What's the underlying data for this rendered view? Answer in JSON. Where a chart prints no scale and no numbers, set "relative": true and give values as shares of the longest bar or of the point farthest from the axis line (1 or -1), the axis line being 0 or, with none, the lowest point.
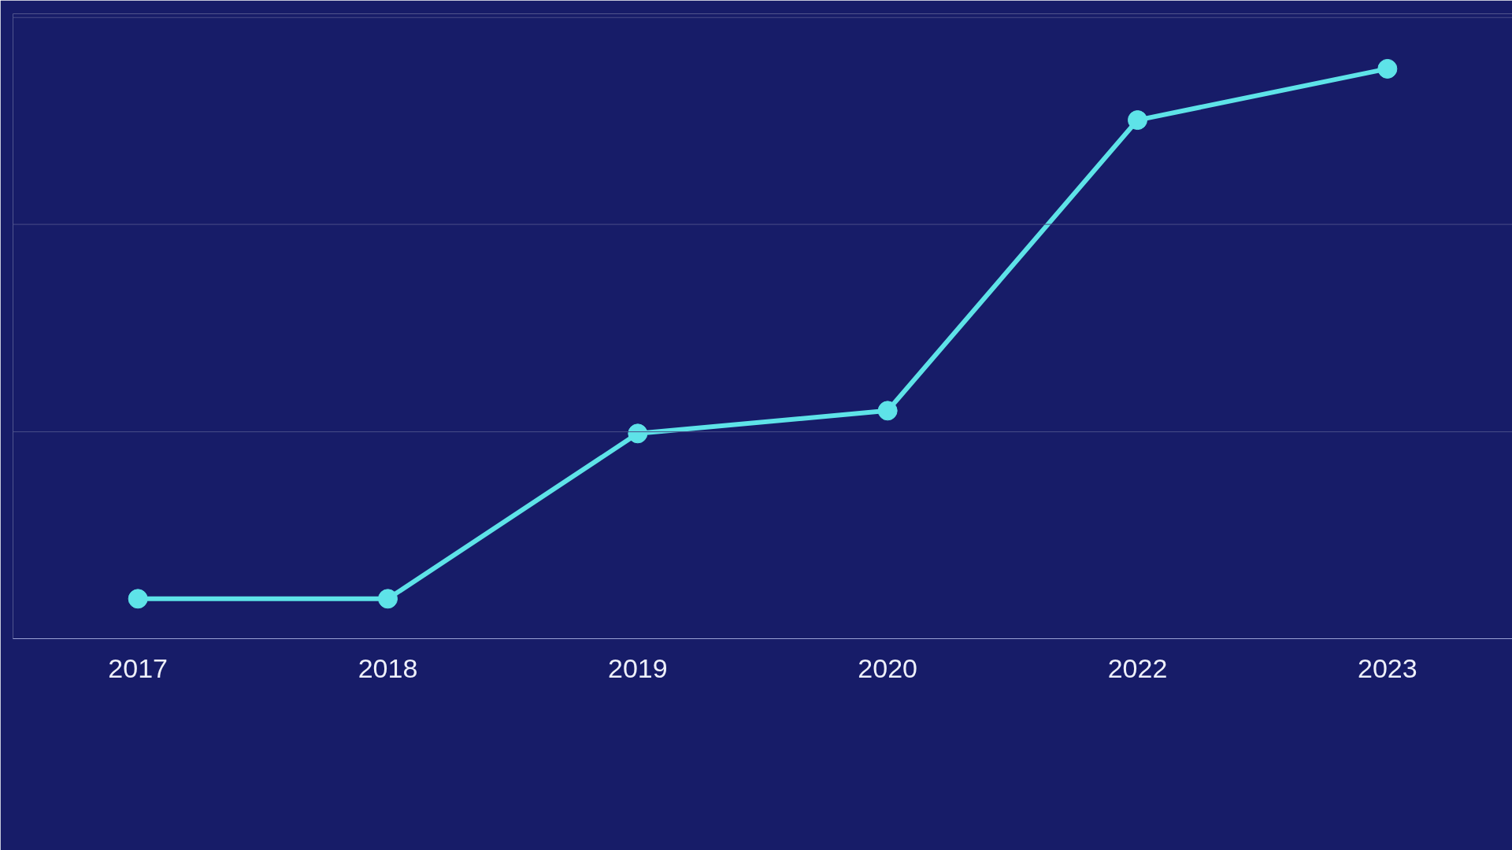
{
  "chart_data": {
    "type": "line",
    "categories": [
      "2017",
      "2018",
      "2019",
      "2020",
      "2022",
      "2023"
    ],
    "relative": true,
    "series": [
      {
        "color": "#5ee3e8",
        "values": [
          0.07,
          0.07,
          0.36,
          0.4,
          0.91,
          1
        ]
      }
    ],
    "ref_lines": [
      {
        "axis": "y",
        "value": 0.363,
        "color": "#4a4e89"
      },
      {
        "axis": "y",
        "value": 0.727,
        "color": "#4a4e89"
      },
      {
        "axis": "y",
        "value": 1.09,
        "color": "#4a4e89"
      }
    ],
    "marker": "circle",
    "line_style": "solid"
  }
}
